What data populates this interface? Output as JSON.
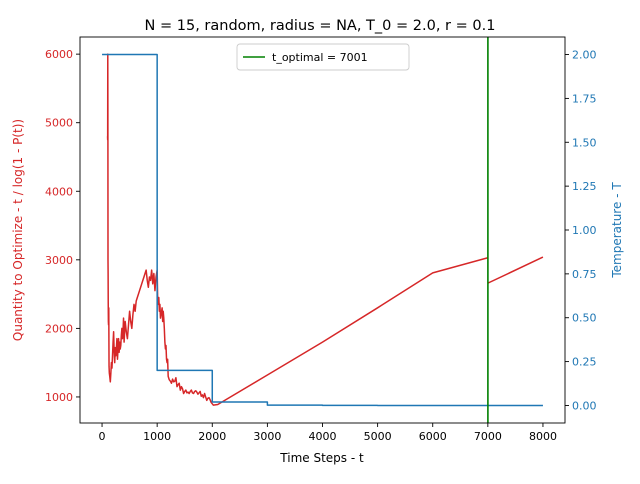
{
  "chart_data": {
    "type": "line",
    "title": "N = 15, random, radius = NA, T_0 = 2.0, r = 0.1",
    "xlabel": "Time Steps - t",
    "ylabel_left": "Quantity to Optimize - t / log(1 - P(t))",
    "ylabel_right": "Temperature - T",
    "xlim": [
      -400,
      8400
    ],
    "ylim_left": [
      620,
      6250
    ],
    "ylim_right": [
      -0.1,
      2.1
    ],
    "x_ticks": [
      0,
      1000,
      2000,
      3000,
      4000,
      5000,
      6000,
      7000,
      8000
    ],
    "x_tick_labels": [
      "0",
      "1000",
      "2000",
      "3000",
      "4000",
      "5000",
      "6000",
      "7000",
      "8000"
    ],
    "y_left_ticks": [
      1000,
      2000,
      3000,
      4000,
      5000,
      6000
    ],
    "y_left_tick_labels": [
      "1000",
      "2000",
      "3000",
      "4000",
      "5000",
      "6000"
    ],
    "y_right_ticks": [
      0.0,
      0.25,
      0.5,
      0.75,
      1.0,
      1.25,
      1.5,
      1.75,
      2.0
    ],
    "y_right_tick_labels": [
      "0.00",
      "0.25",
      "0.50",
      "0.75",
      "1.00",
      "1.25",
      "1.50",
      "1.75",
      "2.00"
    ],
    "grid": false,
    "legend": {
      "placement": "upper center",
      "entries": [
        {
          "label": "t_optimal = 7001",
          "color": "#008000"
        }
      ]
    },
    "vline": {
      "x": 7001,
      "color": "#008000"
    },
    "colors": {
      "quantity": "#d62728",
      "temperature": "#1f77b4",
      "optimal": "#008000"
    },
    "series": [
      {
        "axis": "left",
        "color": "#d62728",
        "x": [
          100,
          102,
          104,
          106,
          108,
          110,
          112,
          115,
          118,
          122,
          127,
          132,
          140,
          150,
          160,
          170,
          180,
          190,
          200,
          210,
          220,
          230,
          240,
          250,
          260,
          270,
          280,
          290,
          300,
          310,
          320,
          330,
          340,
          350,
          360,
          370,
          380,
          390,
          400,
          420,
          440,
          460,
          480,
          500,
          520,
          540,
          560,
          580,
          600,
          620,
          640,
          660,
          680,
          700,
          720,
          740,
          760,
          780,
          800,
          820,
          840,
          860,
          880,
          900,
          920,
          940,
          960,
          980,
          1000,
          1010,
          1020,
          1030,
          1040,
          1050,
          1060,
          1070,
          1080,
          1090,
          1100,
          1110,
          1120,
          1130,
          1140,
          1150,
          1160,
          1170,
          1180,
          1190,
          1200,
          1220,
          1240,
          1260,
          1280,
          1300,
          1320,
          1340,
          1360,
          1380,
          1400,
          1420,
          1440,
          1460,
          1480,
          1500,
          1520,
          1540,
          1560,
          1580,
          1600,
          1620,
          1640,
          1660,
          1680,
          1700,
          1720,
          1740,
          1760,
          1780,
          1800,
          1820,
          1840,
          1860,
          1880,
          1900,
          1920,
          1940,
          1960,
          1980,
          2000,
          2020,
          2100,
          3000,
          4000,
          5000,
          6000,
          7000,
          7001,
          8000
        ],
        "y": [
          4800,
          4750,
          6000,
          5200,
          3000,
          2800,
          2400,
          2100,
          2050,
          2300,
          1450,
          1350,
          1300,
          1220,
          1350,
          1500,
          1420,
          1600,
          1800,
          1950,
          1650,
          1500,
          1720,
          1600,
          1700,
          1850,
          1550,
          1700,
          1850,
          1650,
          1800,
          1700,
          1750,
          1900,
          2000,
          1850,
          1950,
          2150,
          1800,
          2100,
          1950,
          1850,
          2050,
          2250,
          2100,
          2000,
          2200,
          2350,
          2250,
          2400,
          2450,
          2500,
          2550,
          2600,
          2650,
          2700,
          2750,
          2800,
          2850,
          2700,
          2600,
          2750,
          2700,
          2850,
          2650,
          2800,
          2550,
          2750,
          2850,
          2400,
          2350,
          2450,
          2250,
          2350,
          2150,
          2200,
          2250,
          2300,
          2100,
          2250,
          2150,
          2000,
          1800,
          1700,
          1750,
          1550,
          1500,
          1550,
          1300,
          1250,
          1230,
          1200,
          1260,
          1220,
          1230,
          1280,
          1150,
          1180,
          1200,
          1100,
          1150,
          1120,
          1050,
          1080,
          1100,
          1060,
          1070,
          1050,
          1080,
          1100,
          1060,
          1050,
          1080,
          1090,
          1070,
          1040,
          1060,
          1080,
          1010,
          1030,
          990,
          1050,
          1000,
          950,
          980,
          990,
          960,
          920,
          900,
          880,
          890,
          1320,
          1800,
          2300,
          2810,
          3030,
          2660,
          3040
        ]
      },
      {
        "axis": "right",
        "color": "#1f77b4",
        "step": true,
        "x": [
          0,
          1000,
          1000,
          2000,
          2000,
          3000,
          3000,
          4000,
          4000,
          5000,
          5000,
          6000,
          6000,
          7000,
          7000,
          8000
        ],
        "y": [
          2.0,
          2.0,
          0.2,
          0.2,
          0.02,
          0.02,
          0.002,
          0.002,
          0.0002,
          0.0002,
          2e-05,
          2e-05,
          2e-06,
          2e-06,
          2e-07,
          2e-07
        ]
      }
    ]
  }
}
